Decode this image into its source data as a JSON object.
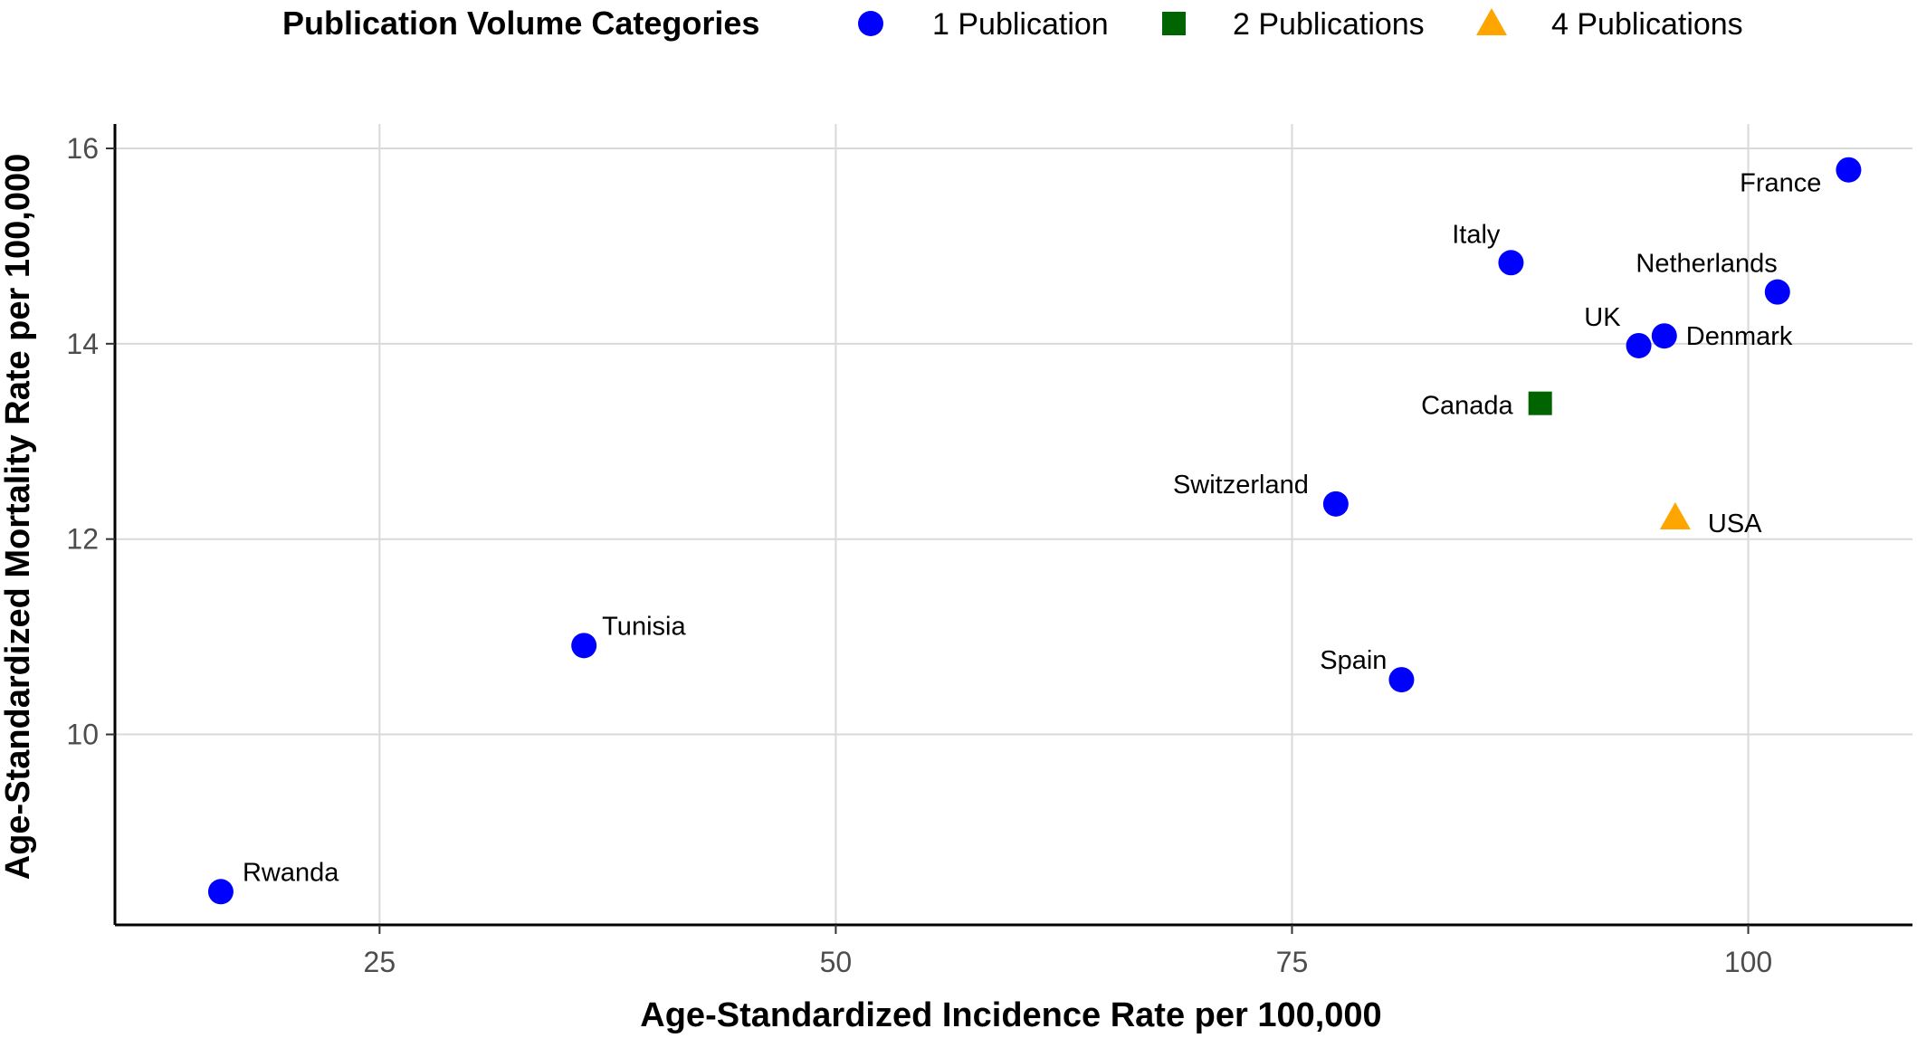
{
  "chart_data": {
    "type": "scatter",
    "title": "",
    "xlabel": "Age-Standardized Incidence Rate per 100,000",
    "ylabel": "Age-Standardized Mortality Rate per 100,000",
    "xlim": [
      10.5,
      109
    ],
    "ylim": [
      8.05,
      16.25
    ],
    "xticks": [
      25,
      50,
      75,
      100
    ],
    "yticks": [
      10,
      12,
      14,
      16
    ],
    "grid": true,
    "legend": {
      "placement": "top",
      "title": "Publication Volume Categories",
      "entries": [
        {
          "label": "1 Publication",
          "color": "#0000ff",
          "shape": "circle"
        },
        {
          "label": "2 Publications",
          "color": "#006400",
          "shape": "square"
        },
        {
          "label": "4 Publications",
          "color": "#ffa500",
          "shape": "triangle"
        }
      ]
    },
    "points": [
      {
        "label": "France",
        "x": 105.5,
        "y": 15.78,
        "category": "1 Publication"
      },
      {
        "label": "Italy",
        "x": 87.0,
        "y": 14.83,
        "category": "1 Publication"
      },
      {
        "label": "Netherlands",
        "x": 101.6,
        "y": 14.53,
        "category": "1 Publication"
      },
      {
        "label": "UK",
        "x": 94.0,
        "y": 13.98,
        "category": "1 Publication"
      },
      {
        "label": "Denmark",
        "x": 95.4,
        "y": 14.08,
        "category": "1 Publication"
      },
      {
        "label": "Canada",
        "x": 88.6,
        "y": 13.39,
        "category": "2 Publications"
      },
      {
        "label": "Switzerland",
        "x": 77.4,
        "y": 12.36,
        "category": "1 Publication"
      },
      {
        "label": "USA",
        "x": 96.0,
        "y": 12.22,
        "category": "4 Publications"
      },
      {
        "label": "Tunisia",
        "x": 36.2,
        "y": 10.91,
        "category": "1 Publication"
      },
      {
        "label": "Spain",
        "x": 81.0,
        "y": 10.56,
        "category": "1 Publication"
      },
      {
        "label": "Rwanda",
        "x": 16.3,
        "y": 8.39,
        "category": "1 Publication"
      }
    ]
  }
}
